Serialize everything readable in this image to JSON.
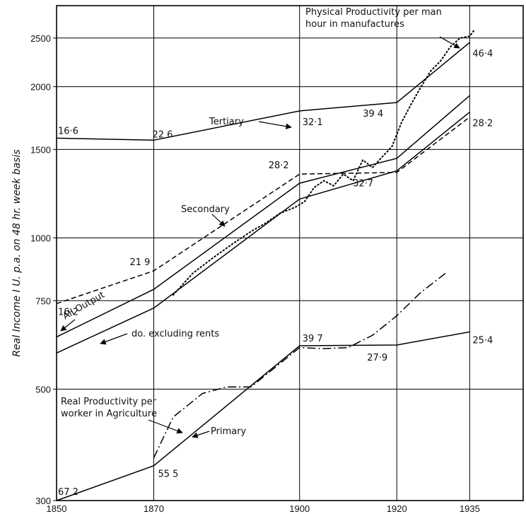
{
  "chart_data": {
    "type": "line",
    "title": "",
    "ylabel": "Real Income I U. p.a. on 48 hr. week basis",
    "xlabel": "",
    "y_scale": "log",
    "xlim": [
      1850,
      1946
    ],
    "ylim": [
      300,
      2900
    ],
    "grid": true,
    "x_ticks": [
      1850,
      1870,
      1900,
      1920,
      1935
    ],
    "y_ticks": [
      300,
      500,
      750,
      1000,
      1500,
      2000,
      2500
    ],
    "series": [
      {
        "name": "Tertiary",
        "style": "solid",
        "x": [
          1850,
          1870,
          1900,
          1920,
          1935
        ],
        "y": [
          1580,
          1565,
          1790,
          1860,
          2450
        ]
      },
      {
        "name": "Secondary",
        "style": "dashed",
        "x": [
          1850,
          1870,
          1900,
          1920,
          1935
        ],
        "y": [
          740,
          860,
          1340,
          1350,
          1740
        ]
      },
      {
        "name": "All Output",
        "style": "solid",
        "x": [
          1850,
          1870,
          1900,
          1920,
          1935
        ],
        "y": [
          635,
          790,
          1285,
          1440,
          1920
        ]
      },
      {
        "name": "do. excluding rents",
        "style": "solid",
        "x": [
          1850,
          1870,
          1900,
          1920,
          1935
        ],
        "y": [
          590,
          725,
          1195,
          1360,
          1780
        ]
      },
      {
        "name": "Primary",
        "style": "solid",
        "x": [
          1850,
          1870,
          1900,
          1920,
          1935
        ],
        "y": [
          300,
          352,
          610,
          612,
          650
        ]
      },
      {
        "name": "Real Productivity per worker in Agriculture",
        "style": "dashdot",
        "x": [
          1870,
          1874,
          1880,
          1885,
          1890,
          1900,
          1905,
          1910,
          1915,
          1920,
          1925,
          1930
        ],
        "y": [
          365,
          440,
          490,
          505,
          505,
          605,
          602,
          605,
          640,
          700,
          780,
          850
        ]
      },
      {
        "name": "Physical Productivity per man hour in manufactures",
        "style": "dotted",
        "x": [
          1874,
          1878,
          1882,
          1886,
          1890,
          1893,
          1896,
          1899,
          1901,
          1903,
          1905,
          1907,
          1909,
          1911,
          1913,
          1915,
          1917,
          1919,
          1921,
          1923,
          1925,
          1927,
          1929,
          1931,
          1933,
          1935,
          1936
        ],
        "y": [
          770,
          850,
          910,
          970,
          1030,
          1070,
          1120,
          1150,
          1180,
          1260,
          1300,
          1270,
          1340,
          1300,
          1430,
          1380,
          1450,
          1520,
          1700,
          1850,
          2000,
          2150,
          2250,
          2400,
          2500,
          2520,
          2600
        ]
      }
    ],
    "series_labels": [
      {
        "text": "Tertiary",
        "series": "Tertiary"
      },
      {
        "text": "Secondary",
        "series": "Secondary"
      },
      {
        "text": "All Output",
        "series": "All Output"
      },
      {
        "text": "do. excluding rents",
        "series": "do. excluding rents"
      },
      {
        "text": "Primary",
        "series": "Primary"
      },
      {
        "text": "Real Productivity per",
        "series": "Real Productivity per worker in Agriculture"
      },
      {
        "text": "worker in Agriculture",
        "series": "Real Productivity per worker in Agriculture"
      },
      {
        "text": "Physical Productivity per man",
        "series": "Physical Productivity per man hour in manufactures"
      },
      {
        "text": "hour in manufactures",
        "series": "Physical Productivity per man hour in manufactures"
      }
    ],
    "annotations": [
      {
        "text": "16·6",
        "x": 1850,
        "y": 1580
      },
      {
        "text": "22 6",
        "x": 1870,
        "y": 1565
      },
      {
        "text": "32·1",
        "x": 1900,
        "y": 1790
      },
      {
        "text": "39 4",
        "x": 1920,
        "y": 1860
      },
      {
        "text": "46·4",
        "x": 1935,
        "y": 2450
      },
      {
        "text": "28·2",
        "x": 1900,
        "y": 1340
      },
      {
        "text": "21 9",
        "x": 1870,
        "y": 860
      },
      {
        "text": "16·2",
        "x": 1850,
        "y": 740
      },
      {
        "text": "32·7",
        "x": 1920,
        "y": 1360
      },
      {
        "text": "28·2",
        "x": 1935,
        "y": 1780
      },
      {
        "text": "39 7",
        "x": 1900,
        "y": 610
      },
      {
        "text": "27·9",
        "x": 1920,
        "y": 612
      },
      {
        "text": "25·4",
        "x": 1935,
        "y": 650
      },
      {
        "text": "67 2",
        "x": 1850,
        "y": 300
      },
      {
        "text": "55 5",
        "x": 1870,
        "y": 352
      }
    ]
  }
}
